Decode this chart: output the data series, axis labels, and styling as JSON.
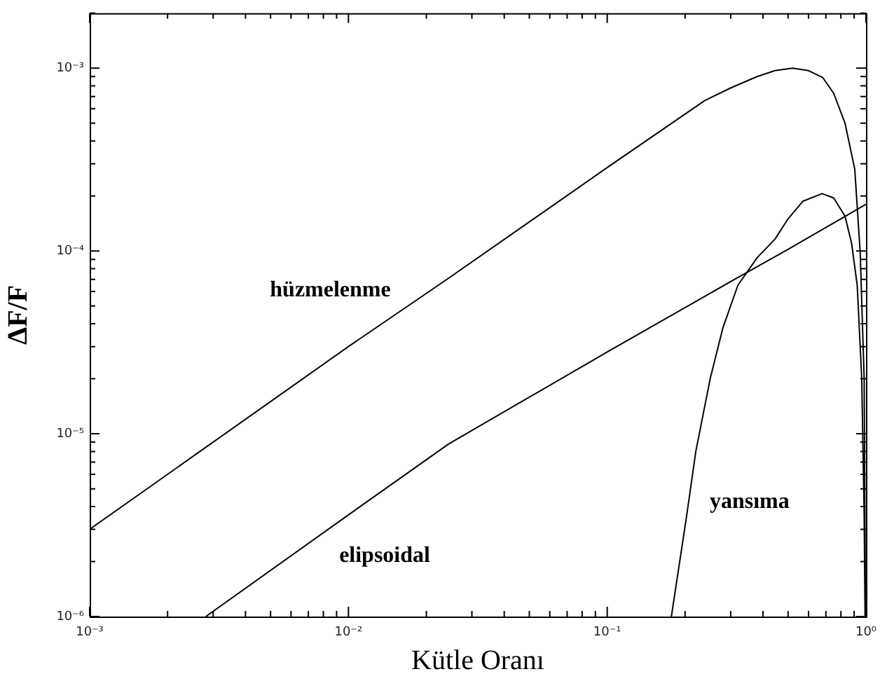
{
  "chart_data": {
    "type": "line",
    "xlabel": "Kütle Oranı",
    "ylabel": "ΔF/F",
    "log": "xy",
    "grid": false,
    "legend": false,
    "marker": "none",
    "line_style": "solid",
    "xlim": [
      0.001,
      1
    ],
    "ylim": [
      1e-06,
      0.002
    ],
    "xticks": [
      {
        "value": 0.001,
        "label": "10⁻³"
      },
      {
        "value": 0.01,
        "label": "10⁻²"
      },
      {
        "value": 0.1,
        "label": "10⁻¹"
      },
      {
        "value": 1,
        "label": "10⁰"
      }
    ],
    "yticks": [
      {
        "value": 1e-06,
        "label": "10⁻⁶"
      },
      {
        "value": 1e-05,
        "label": "10⁻⁵"
      },
      {
        "value": 0.0001,
        "label": "10⁻⁴"
      },
      {
        "value": 0.001,
        "label": "10⁻³"
      }
    ],
    "series": [
      {
        "name": "hüzmelenme",
        "color": "#000000",
        "x": [
          0.001,
          0.01,
          0.0244,
          0.1,
          0.238,
          0.3,
          0.38,
          0.445,
          0.52,
          0.6,
          0.68,
          0.75,
          0.83,
          0.905,
          0.95,
          0.984,
          0.995
        ],
        "values": [
          3e-06,
          3e-05,
          7.1e-05,
          0.000286,
          0.000665,
          0.00078,
          0.0009,
          0.00097,
          0.001,
          0.00097,
          0.00089,
          0.00073,
          0.0005,
          0.00028,
          9.8e-05,
          2e-05,
          1.1e-06
        ]
      },
      {
        "name": "elipsoidal",
        "color": "#000000",
        "x": [
          0.00281,
          0.01,
          0.0244,
          0.1,
          0.3,
          0.5,
          1
        ],
        "values": [
          1e-06,
          3.6e-06,
          8.8e-06,
          2.8e-05,
          6.8e-05,
          0.000102,
          0.00018
        ]
      },
      {
        "name": "yansıma",
        "color": "#000000",
        "x": [
          0.177,
          0.203,
          0.22,
          0.25,
          0.28,
          0.32,
          0.38,
          0.445,
          0.5,
          0.57,
          0.677,
          0.75,
          0.83,
          0.88,
          0.925,
          0.963,
          0.984,
          0.992
        ],
        "values": [
          1e-06,
          3.6e-06,
          8e-06,
          2e-05,
          3.8e-05,
          6.5e-05,
          9.2e-05,
          0.000116,
          0.00015,
          0.000187,
          0.000206,
          0.000195,
          0.000155,
          0.00011,
          6.5e-05,
          2e-05,
          3.6e-06,
          1e-06
        ]
      }
    ]
  }
}
